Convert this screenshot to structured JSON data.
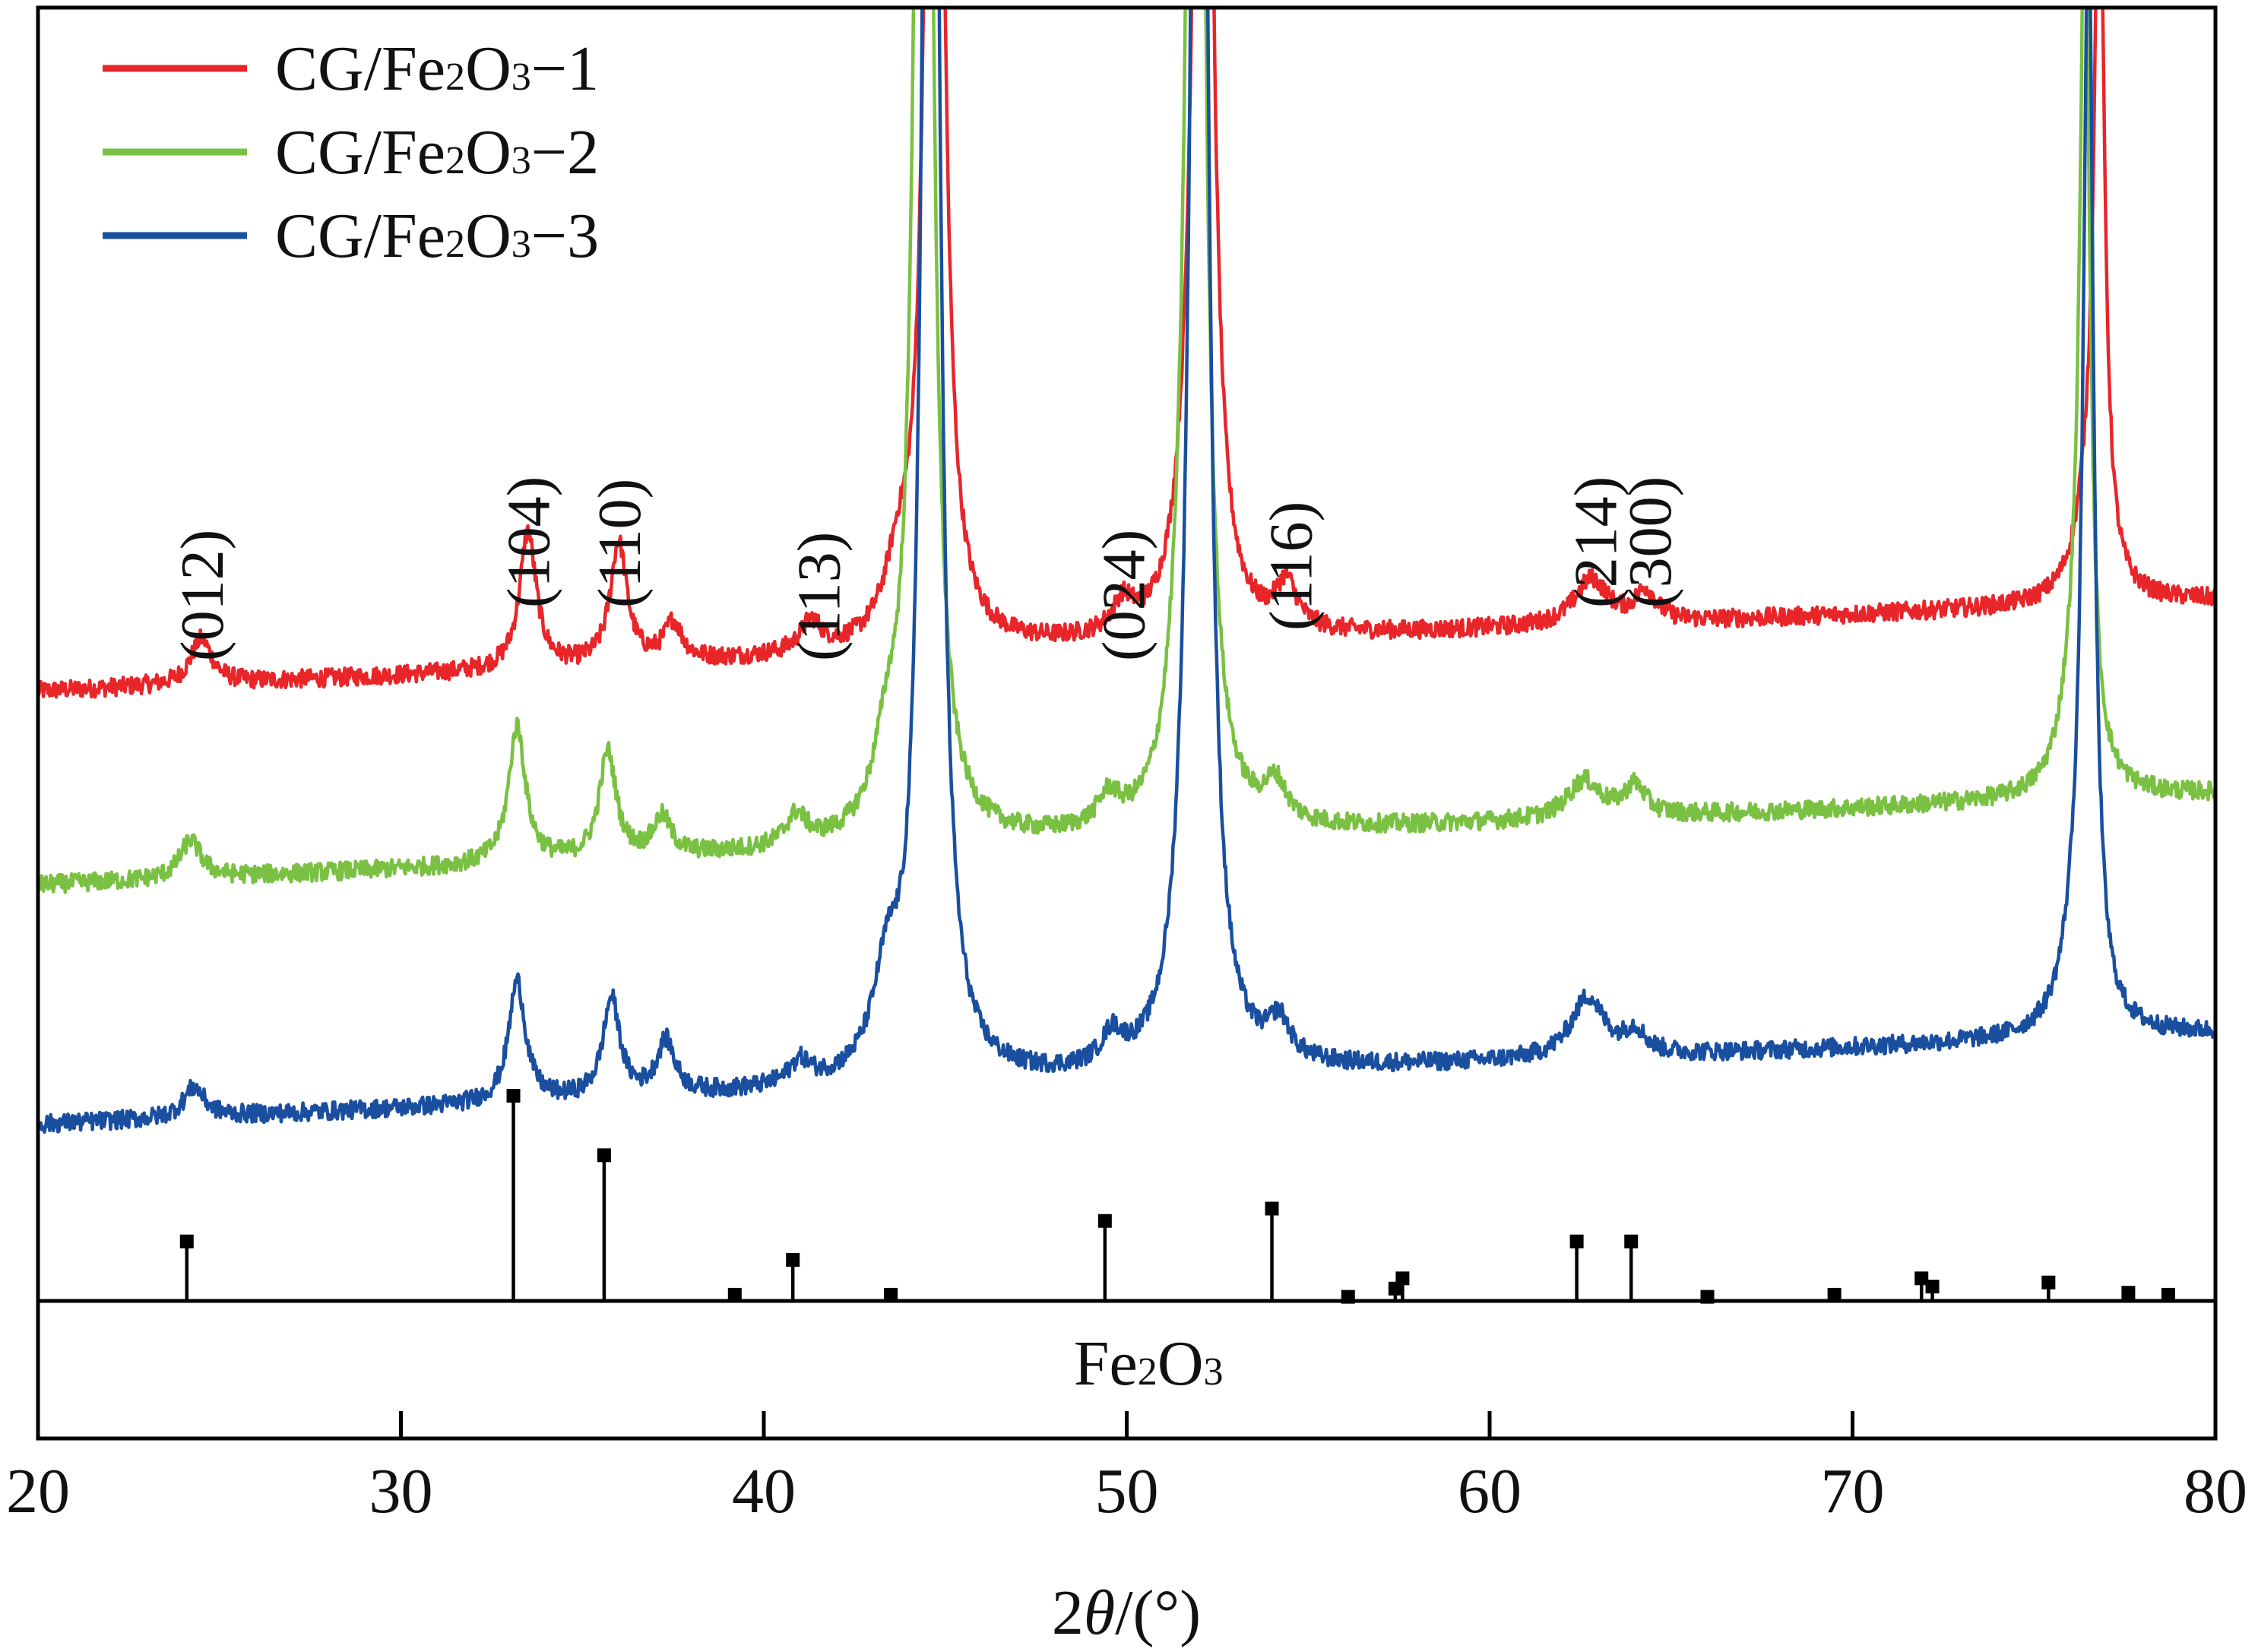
{
  "chart_data": {
    "type": "line",
    "title": "",
    "xlabel": {
      "prefix": "2",
      "italic": "θ",
      "suffix": "/(°)"
    },
    "ylabel": "",
    "xlim": [
      20,
      80
    ],
    "xticks": [
      20,
      30,
      40,
      50,
      60,
      70,
      80
    ],
    "y_axis_ticks": false,
    "grid": false,
    "legend_position": "top-left",
    "series": [
      {
        "name": "CG/Fe2O3-1",
        "label": {
          "base": "CG/Fe",
          "sub1": "2",
          "mid": "O",
          "sub2": "3",
          "tail": "−1"
        },
        "color": "#e8262a",
        "baseline_start": 0.04,
        "baseline_end": 0.1,
        "peaks": [
          [
            24.5,
            0.03,
            0.35
          ],
          [
            33.5,
            0.09,
            0.28
          ],
          [
            36.0,
            0.08,
            0.28
          ],
          [
            37.5,
            0.025,
            0.3
          ],
          [
            41.3,
            0.02,
            0.35
          ],
          [
            43.7,
            0.04,
            0.45
          ],
          [
            44.7,
            1.2,
            0.22
          ],
          [
            49.9,
            0.02,
            0.35
          ],
          [
            51.6,
            0.03,
            0.4
          ],
          [
            52.1,
            1.2,
            0.22
          ],
          [
            54.4,
            0.03,
            0.35
          ],
          [
            62.8,
            0.03,
            0.55
          ],
          [
            64.3,
            0.02,
            0.35
          ],
          [
            76.5,
            0.05,
            0.45
          ],
          [
            76.8,
            0.47,
            0.17
          ]
        ]
      },
      {
        "name": "CG/Fe2O3-2",
        "label": {
          "base": "CG/Fe",
          "sub1": "2",
          "mid": "O",
          "sub2": "3",
          "tail": "−2"
        },
        "color": "#7ac143",
        "baseline_start": 0.04,
        "baseline_end": 0.1,
        "peaks": [
          [
            24.2,
            0.025,
            0.35
          ],
          [
            33.2,
            0.09,
            0.28
          ],
          [
            35.7,
            0.07,
            0.28
          ],
          [
            37.2,
            0.025,
            0.3
          ],
          [
            40.9,
            0.02,
            0.35
          ],
          [
            43.4,
            0.05,
            0.45
          ],
          [
            44.4,
            1.4,
            0.22
          ],
          [
            49.5,
            0.02,
            0.35
          ],
          [
            51.4,
            0.03,
            0.4
          ],
          [
            51.9,
            1.4,
            0.22
          ],
          [
            54.1,
            0.025,
            0.35
          ],
          [
            62.6,
            0.025,
            0.55
          ],
          [
            64.0,
            0.02,
            0.35
          ],
          [
            76.1,
            0.06,
            0.45
          ],
          [
            76.4,
            0.55,
            0.17
          ]
        ]
      },
      {
        "name": "CG/Fe2O3-3",
        "label": {
          "base": "CG/Fe",
          "sub1": "2",
          "mid": "O",
          "sub2": "3",
          "tail": "−3"
        },
        "color": "#1a4fa0",
        "baseline_start": 0.015,
        "baseline_end": 0.075,
        "peaks": [
          [
            24.3,
            0.02,
            0.35
          ],
          [
            33.2,
            0.08,
            0.28
          ],
          [
            35.8,
            0.065,
            0.28
          ],
          [
            37.3,
            0.035,
            0.3
          ],
          [
            41.0,
            0.015,
            0.35
          ],
          [
            43.4,
            0.06,
            0.45
          ],
          [
            44.6,
            1.5,
            0.22
          ],
          [
            49.6,
            0.02,
            0.35
          ],
          [
            51.6,
            0.03,
            0.4
          ],
          [
            52.0,
            1.5,
            0.22
          ],
          [
            54.2,
            0.025,
            0.35
          ],
          [
            62.7,
            0.04,
            0.55
          ],
          [
            64.0,
            0.015,
            0.35
          ],
          [
            76.2,
            0.06,
            0.45
          ],
          [
            76.5,
            0.7,
            0.17
          ]
        ]
      }
    ],
    "hkl_labels": [
      {
        "text": "(012)",
        "x": 24.5
      },
      {
        "text": "(104)",
        "x": 33.5
      },
      {
        "text": "(110)",
        "x": 36.0
      },
      {
        "text": "(113)",
        "x": 41.5
      },
      {
        "text": "(024)",
        "x": 49.9
      },
      {
        "text": "(116)",
        "x": 54.5
      },
      {
        "text": "(214)",
        "x": 62.9
      },
      {
        "text": "(300)",
        "x": 64.4
      }
    ],
    "reference": {
      "name": "Fe2O3",
      "label": {
        "base": "Fe",
        "sub1": "2",
        "mid": "O",
        "sub2": "3"
      },
      "sticks": [
        {
          "x": 24.1,
          "i": 0.29
        },
        {
          "x": 33.1,
          "i": 1.0
        },
        {
          "x": 35.6,
          "i": 0.71
        },
        {
          "x": 39.2,
          "i": 0.03
        },
        {
          "x": 40.8,
          "i": 0.2
        },
        {
          "x": 43.5,
          "i": 0.03
        },
        {
          "x": 49.4,
          "i": 0.39
        },
        {
          "x": 54.0,
          "i": 0.45
        },
        {
          "x": 56.1,
          "i": 0.02
        },
        {
          "x": 57.4,
          "i": 0.06
        },
        {
          "x": 57.6,
          "i": 0.11
        },
        {
          "x": 62.4,
          "i": 0.29
        },
        {
          "x": 63.9,
          "i": 0.29
        },
        {
          "x": 66.0,
          "i": 0.02
        },
        {
          "x": 69.5,
          "i": 0.03
        },
        {
          "x": 71.9,
          "i": 0.11
        },
        {
          "x": 72.2,
          "i": 0.07
        },
        {
          "x": 75.4,
          "i": 0.09
        },
        {
          "x": 77.6,
          "i": 0.04
        },
        {
          "x": 78.7,
          "i": 0.03
        }
      ]
    }
  }
}
